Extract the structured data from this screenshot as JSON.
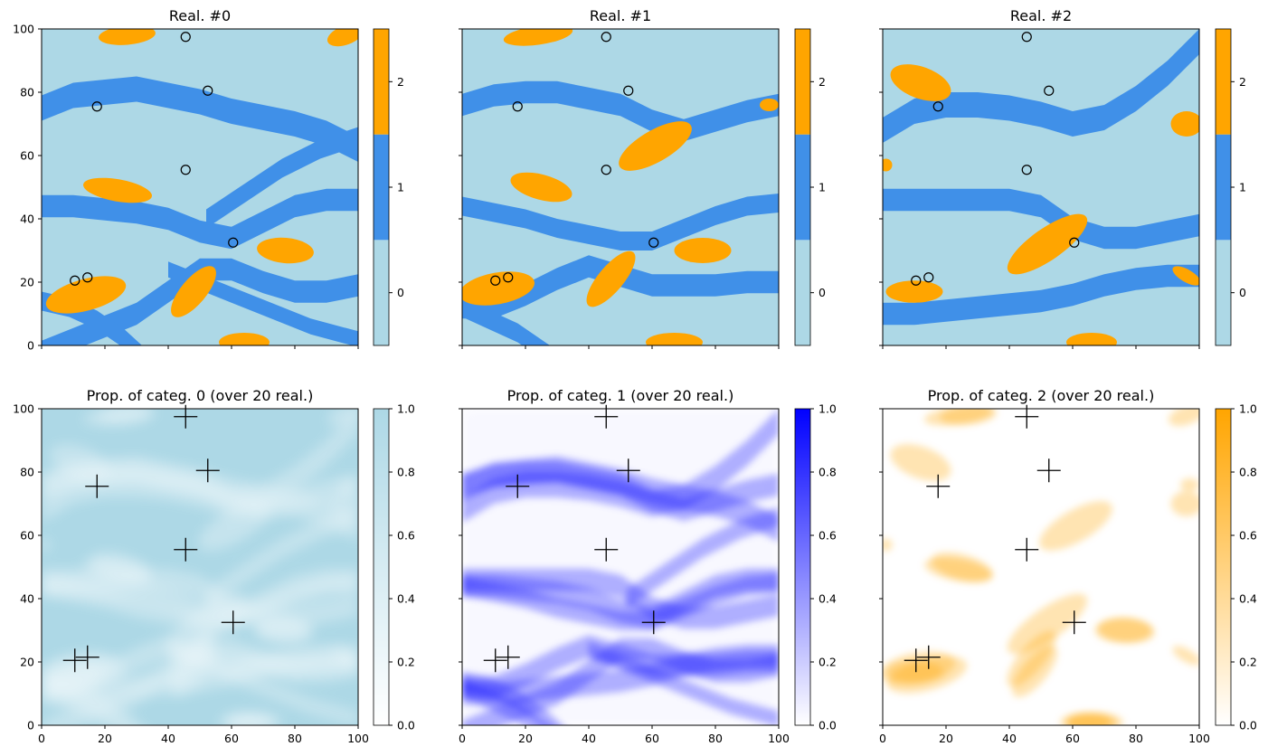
{
  "colors": {
    "categ0": "#add8e6",
    "categ1": "#4090e8",
    "categ2": "#ffa500",
    "prop0_max": "#add8e6",
    "prop1_max": "#0000ff",
    "prop2_max": "#ffa500"
  },
  "chart_data": [
    {
      "type": "heatmap",
      "title": "Real. #0",
      "xlim": [
        0,
        100
      ],
      "ylim": [
        0,
        100
      ],
      "xticks": [
        "0",
        "20",
        "40",
        "60",
        "80",
        "100"
      ],
      "yticks": [
        "0",
        "20",
        "40",
        "60",
        "80",
        "100"
      ],
      "show_x_tick_labels": false,
      "show_y_tick_labels": true,
      "colorbar": {
        "kind": "categorical",
        "categories": [
          0,
          1,
          2
        ],
        "tick_labels": [
          "0",
          "1",
          "2"
        ]
      },
      "conditioning_points": [
        [
          10.5,
          20.5
        ],
        [
          14.5,
          21.5
        ],
        [
          17.5,
          75.5
        ],
        [
          45.5,
          97.5
        ],
        [
          52.5,
          80.5
        ],
        [
          45.5,
          55.5
        ],
        [
          60.5,
          32.5
        ]
      ],
      "marker": "circle",
      "channels_categ1": [
        {
          "from": 0,
          "y": [
            75,
            79,
            80,
            81,
            79,
            77,
            74,
            72,
            70,
            67,
            62
          ],
          "width": 8
        },
        {
          "from": 0,
          "y": [
            44,
            44,
            43,
            42,
            40,
            36,
            34,
            39,
            44,
            46,
            46
          ],
          "width": 7
        },
        {
          "from": 52,
          "y": [
            40,
            48,
            56,
            62,
            66
          ],
          "width": 6,
          "start": 52
        },
        {
          "from": 0,
          "y": [
            -2,
            2,
            6,
            10,
            17,
            24,
            24,
            20,
            17,
            17,
            19
          ],
          "width": 7
        },
        {
          "from": 40,
          "y": [
            24,
            18,
            12,
            6,
            2
          ],
          "width": 5,
          "start": 40
        },
        {
          "from": 0,
          "y": [
            14,
            12,
            8,
            2,
            -6
          ],
          "width": 6,
          "span": 35
        }
      ],
      "lenses_categ2": [
        {
          "cx": 14,
          "cy": 16,
          "rx": 13,
          "ry": 5,
          "rot": -15
        },
        {
          "cx": 48,
          "cy": 17,
          "rx": 10,
          "ry": 4,
          "rot": -50
        },
        {
          "cx": 77,
          "cy": 30,
          "rx": 9,
          "ry": 4,
          "rot": 5
        },
        {
          "cx": 24,
          "cy": 49,
          "rx": 11,
          "ry": 3.5,
          "rot": 10
        },
        {
          "cx": 27,
          "cy": 98,
          "rx": 9,
          "ry": 3,
          "rot": -5
        },
        {
          "cx": 96,
          "cy": 98,
          "rx": 6,
          "ry": 3,
          "rot": -20
        },
        {
          "cx": 64,
          "cy": 1,
          "rx": 8,
          "ry": 3,
          "rot": 0
        }
      ]
    },
    {
      "type": "heatmap",
      "title": "Real. #1",
      "xlim": [
        0,
        100
      ],
      "ylim": [
        0,
        100
      ],
      "xticks": [
        "0",
        "20",
        "40",
        "60",
        "80",
        "100"
      ],
      "yticks": [
        "0",
        "20",
        "40",
        "60",
        "80",
        "100"
      ],
      "show_x_tick_labels": false,
      "show_y_tick_labels": false,
      "colorbar": {
        "kind": "categorical",
        "categories": [
          0,
          1,
          2
        ],
        "tick_labels": [
          "0",
          "1",
          "2"
        ]
      },
      "conditioning_points": [
        [
          10.5,
          20.5
        ],
        [
          14.5,
          21.5
        ],
        [
          17.5,
          75.5
        ],
        [
          45.5,
          97.5
        ],
        [
          52.5,
          80.5
        ],
        [
          45.5,
          55.5
        ],
        [
          60.5,
          32.5
        ]
      ],
      "marker": "circle",
      "channels_categ1": [
        {
          "from": 0,
          "y": [
            76,
            79,
            80,
            80,
            78,
            76,
            71,
            68,
            71,
            74,
            76
          ],
          "width": 7
        },
        {
          "from": 0,
          "y": [
            44,
            42,
            40,
            37,
            35,
            33,
            33,
            37,
            41,
            44,
            45
          ],
          "width": 6
        },
        {
          "from": 0,
          "y": [
            12,
            12,
            16,
            21,
            25,
            22,
            19,
            19,
            19,
            20,
            20
          ],
          "width": 7
        },
        {
          "from": 0,
          "y": [
            12,
            8,
            4,
            -2,
            -8
          ],
          "width": 6,
          "span": 35
        }
      ],
      "lenses_categ2": [
        {
          "cx": 11,
          "cy": 18,
          "rx": 12,
          "ry": 5,
          "rot": -10
        },
        {
          "cx": 47,
          "cy": 21,
          "rx": 11,
          "ry": 4,
          "rot": -50
        },
        {
          "cx": 76,
          "cy": 30,
          "rx": 9,
          "ry": 4,
          "rot": 0
        },
        {
          "cx": 25,
          "cy": 50,
          "rx": 10,
          "ry": 4,
          "rot": 15
        },
        {
          "cx": 61,
          "cy": 63,
          "rx": 13,
          "ry": 5,
          "rot": -30
        },
        {
          "cx": 24,
          "cy": 98,
          "rx": 11,
          "ry": 3,
          "rot": -8
        },
        {
          "cx": 67,
          "cy": 1,
          "rx": 9,
          "ry": 3,
          "rot": 0
        },
        {
          "cx": 97,
          "cy": 76,
          "rx": 3,
          "ry": 2,
          "rot": 0
        }
      ]
    },
    {
      "type": "heatmap",
      "title": "Real. #2",
      "xlim": [
        0,
        100
      ],
      "ylim": [
        0,
        100
      ],
      "xticks": [
        "0",
        "20",
        "40",
        "60",
        "80",
        "100"
      ],
      "yticks": [
        "0",
        "20",
        "40",
        "60",
        "80",
        "100"
      ],
      "show_x_tick_labels": false,
      "show_y_tick_labels": false,
      "colorbar": {
        "kind": "categorical",
        "categories": [
          0,
          1,
          2
        ],
        "tick_labels": [
          "0",
          "1",
          "2"
        ]
      },
      "conditioning_points": [
        [
          10.5,
          20.5
        ],
        [
          14.5,
          21.5
        ],
        [
          17.5,
          75.5
        ],
        [
          45.5,
          97.5
        ],
        [
          52.5,
          80.5
        ],
        [
          45.5,
          55.5
        ],
        [
          60.5,
          32.5
        ]
      ],
      "marker": "circle",
      "channels_categ1": [
        {
          "from": 0,
          "y": [
            68,
            74,
            76,
            76,
            75,
            73,
            70,
            72,
            78,
            86,
            96
          ],
          "width": 8
        },
        {
          "from": 0,
          "y": [
            46,
            46,
            46,
            46,
            46,
            44,
            37,
            34,
            34,
            36,
            38
          ],
          "width": 7
        },
        {
          "from": 0,
          "y": [
            10,
            10,
            11,
            12,
            13,
            14,
            16,
            19,
            21,
            22,
            22
          ],
          "width": 7
        }
      ],
      "lenses_categ2": [
        {
          "cx": 10,
          "cy": 17,
          "rx": 9,
          "ry": 3.5,
          "rot": 0
        },
        {
          "cx": 52,
          "cy": 32,
          "rx": 15,
          "ry": 5,
          "rot": -35
        },
        {
          "cx": 12,
          "cy": 83,
          "rx": 10,
          "ry": 5,
          "rot": 20
        },
        {
          "cx": 96,
          "cy": 70,
          "rx": 5,
          "ry": 4,
          "rot": 0
        },
        {
          "cx": 66,
          "cy": 1,
          "rx": 8,
          "ry": 3,
          "rot": 0
        },
        {
          "cx": 96,
          "cy": 22,
          "rx": 5,
          "ry": 2,
          "rot": 30
        },
        {
          "cx": 1,
          "cy": 57,
          "rx": 2,
          "ry": 2,
          "rot": 0
        }
      ]
    },
    {
      "type": "heatmap",
      "title": "Prop. of categ. 0 (over 20 real.)",
      "xlim": [
        0,
        100
      ],
      "ylim": [
        0,
        100
      ],
      "xticks": [
        "0",
        "20",
        "40",
        "60",
        "80",
        "100"
      ],
      "yticks": [
        "0",
        "20",
        "40",
        "60",
        "80",
        "100"
      ],
      "show_x_tick_labels": true,
      "show_y_tick_labels": true,
      "colorbar": {
        "kind": "continuous",
        "range": [
          0,
          1
        ],
        "tick_labels": [
          "0.0",
          "0.2",
          "0.4",
          "0.6",
          "0.8",
          "1.0"
        ]
      },
      "conditioning_points": [
        [
          10.5,
          20.5
        ],
        [
          14.5,
          21.5
        ],
        [
          17.5,
          75.5
        ],
        [
          45.5,
          97.5
        ],
        [
          52.5,
          80.5
        ],
        [
          45.5,
          55.5
        ],
        [
          60.5,
          32.5
        ]
      ],
      "marker": "plus",
      "category": 0
    },
    {
      "type": "heatmap",
      "title": "Prop. of categ. 1 (over 20 real.)",
      "xlim": [
        0,
        100
      ],
      "ylim": [
        0,
        100
      ],
      "xticks": [
        "0",
        "20",
        "40",
        "60",
        "80",
        "100"
      ],
      "yticks": [
        "0",
        "20",
        "40",
        "60",
        "80",
        "100"
      ],
      "show_x_tick_labels": true,
      "show_y_tick_labels": false,
      "colorbar": {
        "kind": "continuous",
        "range": [
          0,
          1
        ],
        "tick_labels": [
          "0.0",
          "0.2",
          "0.4",
          "0.6",
          "0.8",
          "1.0"
        ]
      },
      "conditioning_points": [
        [
          10.5,
          20.5
        ],
        [
          14.5,
          21.5
        ],
        [
          17.5,
          75.5
        ],
        [
          45.5,
          97.5
        ],
        [
          52.5,
          80.5
        ],
        [
          45.5,
          55.5
        ],
        [
          60.5,
          32.5
        ]
      ],
      "marker": "plus",
      "category": 1
    },
    {
      "type": "heatmap",
      "title": "Prop. of categ. 2 (over 20 real.)",
      "xlim": [
        0,
        100
      ],
      "ylim": [
        0,
        100
      ],
      "xticks": [
        "0",
        "20",
        "40",
        "60",
        "80",
        "100"
      ],
      "yticks": [
        "0",
        "20",
        "40",
        "60",
        "80",
        "100"
      ],
      "show_x_tick_labels": true,
      "show_y_tick_labels": false,
      "colorbar": {
        "kind": "continuous",
        "range": [
          0,
          1
        ],
        "tick_labels": [
          "0.0",
          "0.2",
          "0.4",
          "0.6",
          "0.8",
          "1.0"
        ]
      },
      "conditioning_points": [
        [
          10.5,
          20.5
        ],
        [
          14.5,
          21.5
        ],
        [
          17.5,
          75.5
        ],
        [
          45.5,
          97.5
        ],
        [
          52.5,
          80.5
        ],
        [
          45.5,
          55.5
        ],
        [
          60.5,
          32.5
        ]
      ],
      "marker": "plus",
      "category": 2
    }
  ]
}
